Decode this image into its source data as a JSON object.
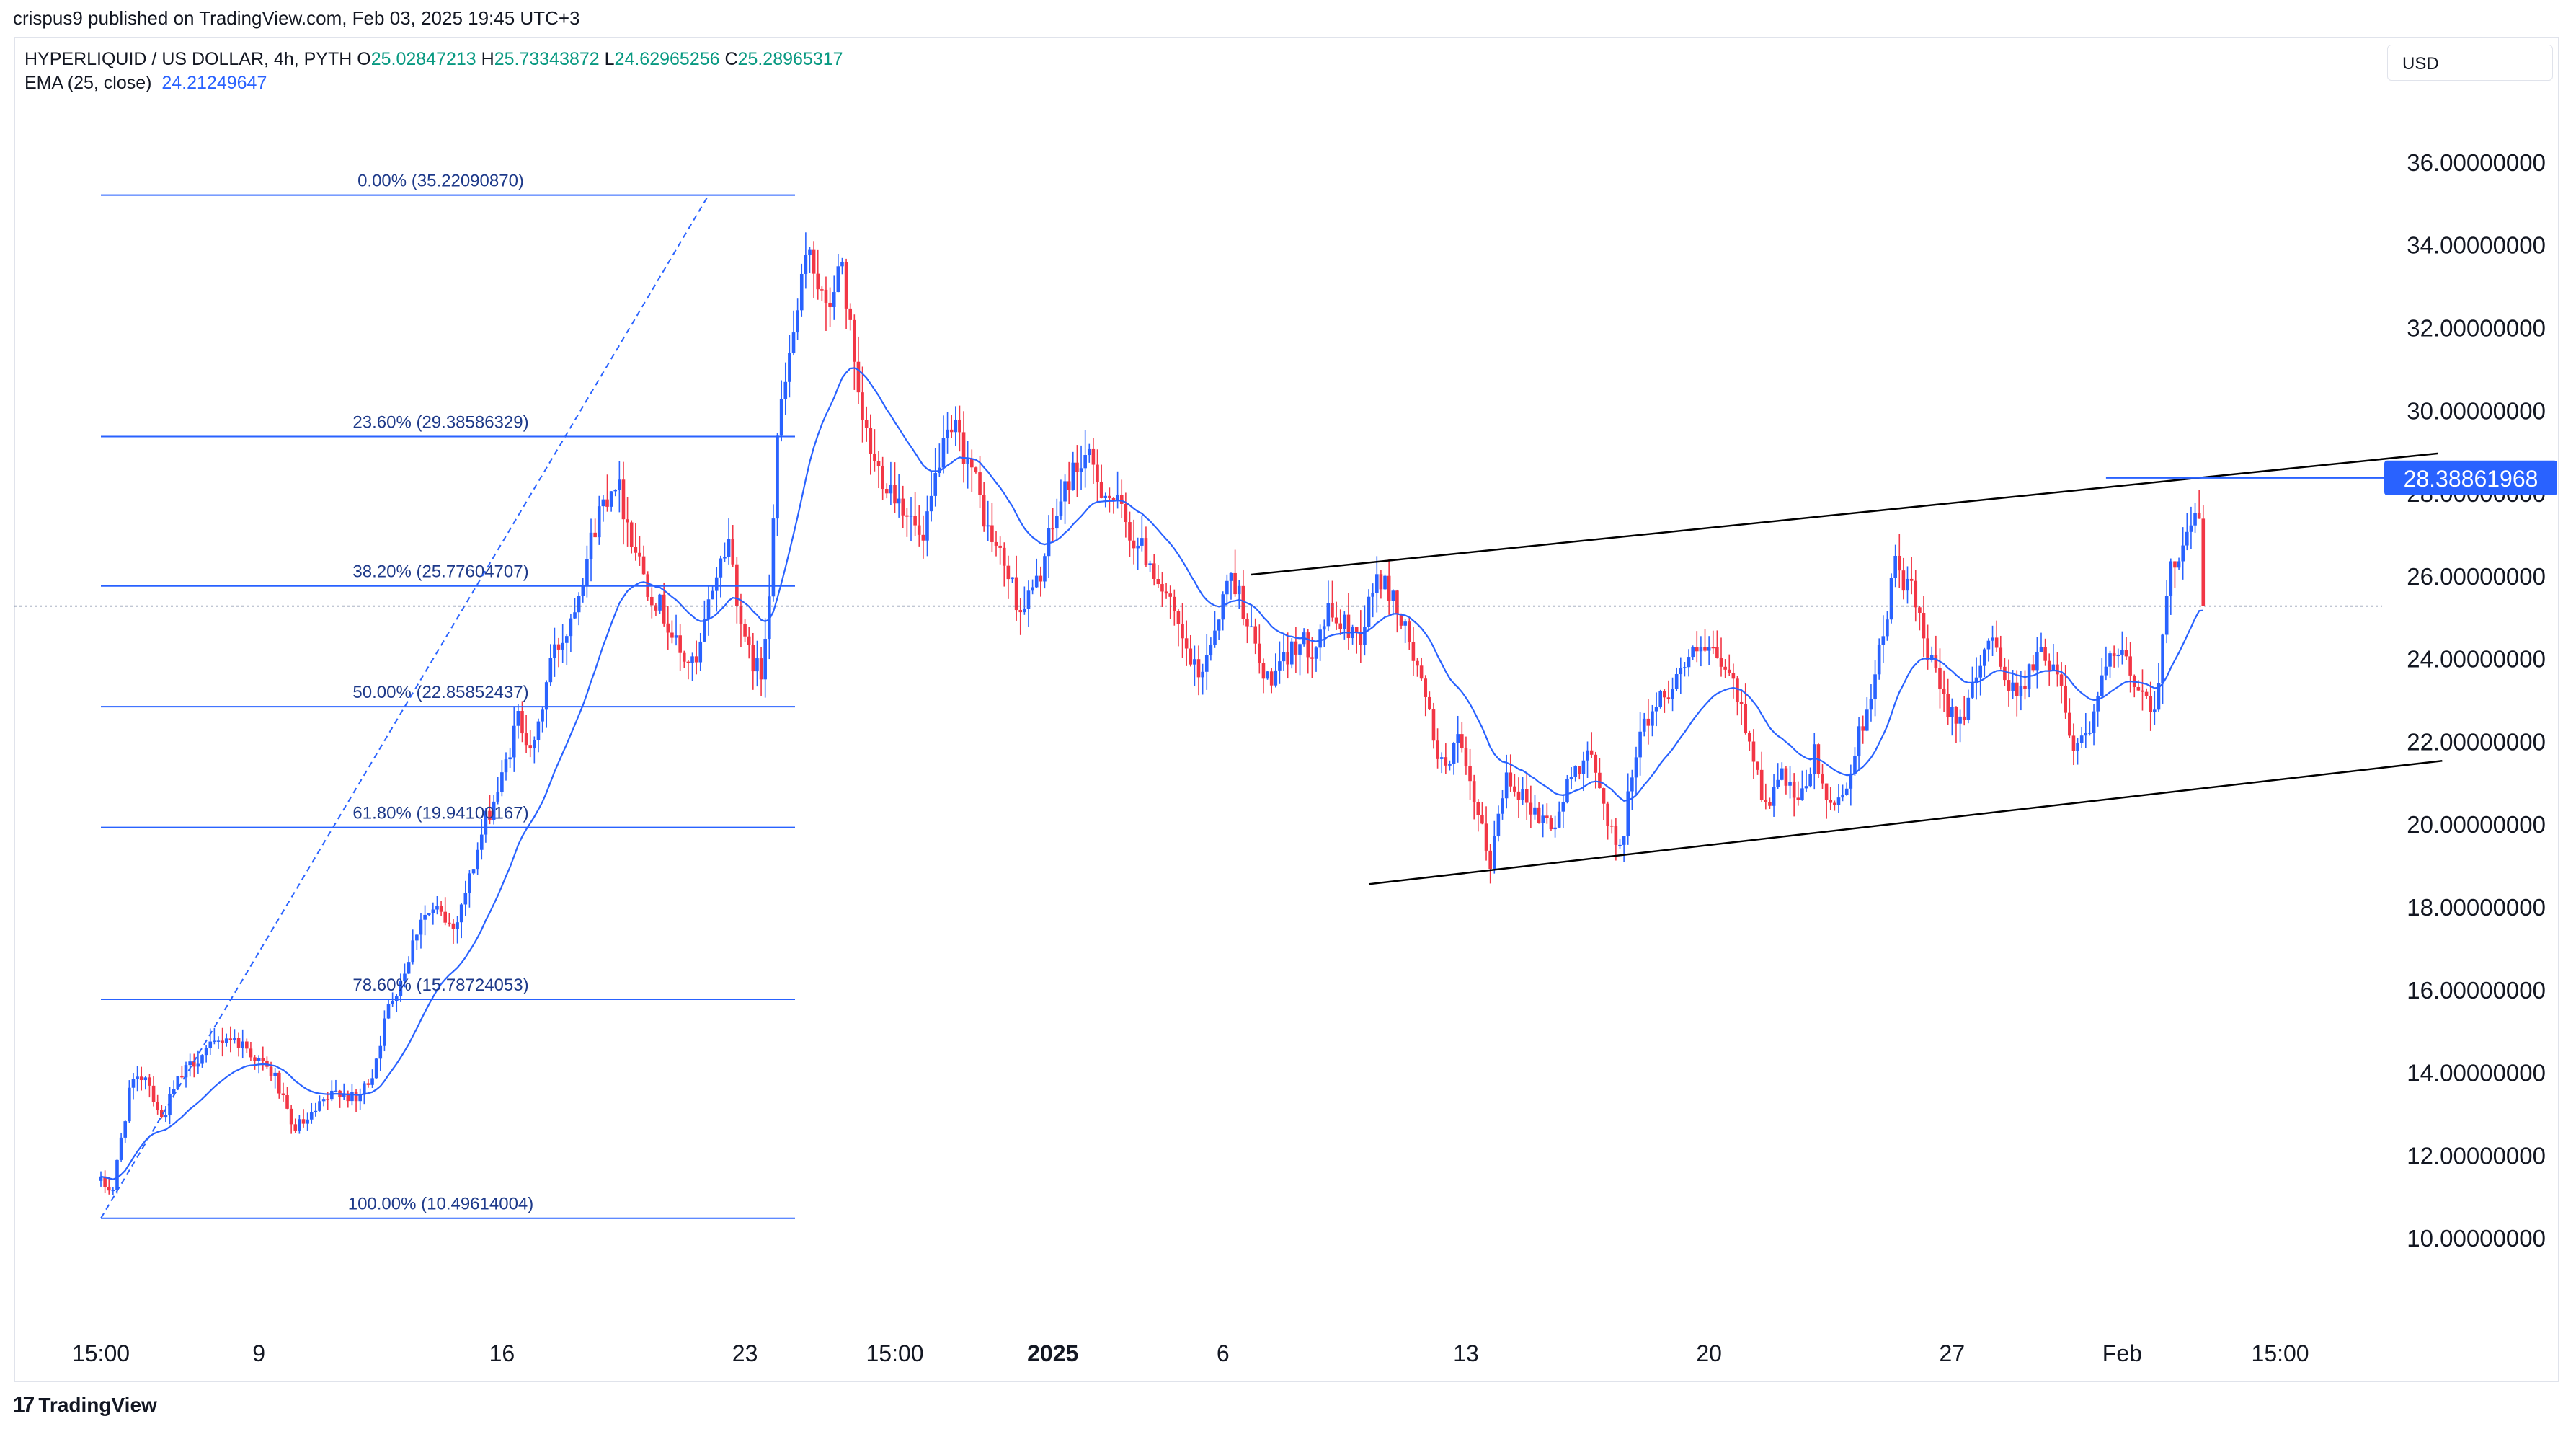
{
  "header": {
    "publisher": "crispus9 published on TradingView.com, Feb 03, 2025 19:45 UTC+3",
    "symbol": "HYPERLIQUID / US DOLLAR, 4h, PYTH",
    "ohlc": {
      "o_label": "O",
      "o": "25.02847213",
      "h_label": "H",
      "h": "25.73343872",
      "l_label": "L",
      "l": "24.62965256",
      "c_label": "C",
      "c": "25.28965317"
    },
    "ema_label": "EMA (25, close)",
    "ema_value": "24.21249647",
    "currency": "USD"
  },
  "footer": {
    "brand": "TradingView",
    "brand_mark": "17"
  },
  "colors": {
    "up": "#2962ff",
    "down": "#f23645",
    "ema": "#2962ff",
    "fib": "#2962ff",
    "fib_text": "#1e3a8a",
    "channel": "#000000",
    "price_line": "#5b6b8c",
    "badge": "#2962ff"
  },
  "chart_data": {
    "type": "candlestick",
    "title": "",
    "ylim": [
      8,
      37
    ],
    "y_ticks": [
      "10.00000000",
      "12.00000000",
      "14.00000000",
      "16.00000000",
      "18.00000000",
      "20.00000000",
      "22.00000000",
      "24.00000000",
      "26.00000000",
      "28.00000000",
      "30.00000000",
      "32.00000000",
      "34.00000000",
      "36.00000000"
    ],
    "y_tick_values": [
      10,
      12,
      14,
      16,
      18,
      20,
      22,
      24,
      26,
      28,
      30,
      32,
      34,
      36
    ],
    "x_ticks": [
      {
        "label": "15:00",
        "bar": 0,
        "bold": false
      },
      {
        "label": "9",
        "bar": 39,
        "bold": false
      },
      {
        "label": "16",
        "bar": 99,
        "bold": false
      },
      {
        "label": "23",
        "bar": 159,
        "bold": false
      },
      {
        "label": "15:00",
        "bar": 196,
        "bold": false
      },
      {
        "label": "2025",
        "bar": 235,
        "bold": true
      },
      {
        "label": "6",
        "bar": 277,
        "bold": false
      },
      {
        "label": "13",
        "bar": 337,
        "bold": false
      },
      {
        "label": "20",
        "bar": 397,
        "bold": false
      },
      {
        "label": "27",
        "bar": 457,
        "bold": false
      },
      {
        "label": "Feb",
        "bar": 499,
        "bold": false
      },
      {
        "label": "15:00",
        "bar": 538,
        "bold": false
      }
    ],
    "bar_count": 520,
    "anchors": [
      [
        0,
        11.4
      ],
      [
        4,
        11.2
      ],
      [
        8,
        13.6
      ],
      [
        12,
        14.0
      ],
      [
        16,
        12.9
      ],
      [
        20,
        13.8
      ],
      [
        24,
        14.3
      ],
      [
        28,
        14.6
      ],
      [
        32,
        14.9
      ],
      [
        36,
        14.7
      ],
      [
        40,
        14.3
      ],
      [
        44,
        13.9
      ],
      [
        48,
        12.7
      ],
      [
        52,
        12.8
      ],
      [
        56,
        13.3
      ],
      [
        60,
        13.6
      ],
      [
        64,
        13.3
      ],
      [
        68,
        14.0
      ],
      [
        72,
        15.6
      ],
      [
        76,
        16.5
      ],
      [
        80,
        17.8
      ],
      [
        84,
        17.9
      ],
      [
        88,
        17.5
      ],
      [
        92,
        18.7
      ],
      [
        96,
        20.1
      ],
      [
        100,
        21.1
      ],
      [
        104,
        22.6
      ],
      [
        108,
        21.8
      ],
      [
        112,
        24.0
      ],
      [
        116,
        24.7
      ],
      [
        120,
        26.1
      ],
      [
        124,
        27.6
      ],
      [
        128,
        28.4
      ],
      [
        132,
        27.0
      ],
      [
        136,
        25.8
      ],
      [
        140,
        25.1
      ],
      [
        144,
        24.1
      ],
      [
        148,
        23.8
      ],
      [
        152,
        25.8
      ],
      [
        156,
        26.9
      ],
      [
        160,
        24.3
      ],
      [
        164,
        23.6
      ],
      [
        166,
        25.8
      ],
      [
        168,
        29.4
      ],
      [
        172,
        31.9
      ],
      [
        176,
        34.0
      ],
      [
        180,
        32.3
      ],
      [
        184,
        33.6
      ],
      [
        188,
        30.1
      ],
      [
        192,
        28.7
      ],
      [
        196,
        28.2
      ],
      [
        200,
        27.6
      ],
      [
        204,
        26.7
      ],
      [
        208,
        28.9
      ],
      [
        212,
        29.5
      ],
      [
        216,
        28.6
      ],
      [
        220,
        27.1
      ],
      [
        224,
        26.3
      ],
      [
        228,
        25.2
      ],
      [
        232,
        25.8
      ],
      [
        236,
        27.2
      ],
      [
        240,
        28.4
      ],
      [
        244,
        28.9
      ],
      [
        248,
        28.2
      ],
      [
        252,
        27.7
      ],
      [
        256,
        26.9
      ],
      [
        260,
        26.4
      ],
      [
        264,
        25.5
      ],
      [
        268,
        24.4
      ],
      [
        272,
        23.5
      ],
      [
        276,
        24.8
      ],
      [
        280,
        26.1
      ],
      [
        284,
        25.0
      ],
      [
        288,
        23.5
      ],
      [
        292,
        23.7
      ],
      [
        296,
        24.4
      ],
      [
        300,
        24.3
      ],
      [
        304,
        25.1
      ],
      [
        308,
        24.8
      ],
      [
        312,
        24.6
      ],
      [
        316,
        26.0
      ],
      [
        320,
        25.5
      ],
      [
        324,
        24.4
      ],
      [
        328,
        23.0
      ],
      [
        332,
        21.4
      ],
      [
        336,
        22.0
      ],
      [
        340,
        20.5
      ],
      [
        344,
        19.1
      ],
      [
        348,
        21.3
      ],
      [
        352,
        20.7
      ],
      [
        356,
        20.2
      ],
      [
        360,
        20.0
      ],
      [
        364,
        21.2
      ],
      [
        368,
        21.8
      ],
      [
        372,
        20.5
      ],
      [
        376,
        19.3
      ],
      [
        380,
        21.9
      ],
      [
        384,
        22.8
      ],
      [
        388,
        23.3
      ],
      [
        392,
        23.9
      ],
      [
        396,
        24.2
      ],
      [
        400,
        24.0
      ],
      [
        404,
        23.4
      ],
      [
        408,
        22.1
      ],
      [
        412,
        20.4
      ],
      [
        416,
        21.2
      ],
      [
        420,
        20.4
      ],
      [
        424,
        21.7
      ],
      [
        428,
        20.3
      ],
      [
        432,
        21.0
      ],
      [
        436,
        22.5
      ],
      [
        440,
        24.1
      ],
      [
        444,
        26.3
      ],
      [
        448,
        25.6
      ],
      [
        452,
        24.1
      ],
      [
        456,
        23.0
      ],
      [
        460,
        22.6
      ],
      [
        464,
        23.4
      ],
      [
        468,
        24.8
      ],
      [
        472,
        23.2
      ],
      [
        476,
        23.5
      ],
      [
        480,
        24.2
      ],
      [
        484,
        23.8
      ],
      [
        488,
        21.9
      ],
      [
        492,
        22.4
      ],
      [
        496,
        23.8
      ],
      [
        500,
        24.1
      ],
      [
        504,
        23.3
      ],
      [
        508,
        22.9
      ],
      [
        512,
        26.1
      ],
      [
        516,
        27.2
      ],
      [
        520,
        27.5
      ],
      [
        524,
        27.9
      ],
      [
        528,
        27.1
      ],
      [
        532,
        26.5
      ],
      [
        536,
        22.6
      ],
      [
        540,
        22.1
      ],
      [
        544,
        22.3
      ],
      [
        548,
        24.0
      ],
      [
        552,
        25.3
      ]
    ],
    "ema_period": 25,
    "last_close": 25.28965317,
    "fib_levels": [
      {
        "label": "0.00% (35.22090870)",
        "value": 35.2209087
      },
      {
        "label": "23.60% (29.38586329)",
        "value": 29.38586329
      },
      {
        "label": "38.20% (25.77604707)",
        "value": 25.77604707
      },
      {
        "label": "50.00% (22.85852437)",
        "value": 22.85852437
      },
      {
        "label": "61.80% (19.94100167)",
        "value": 19.94100167
      },
      {
        "label": "78.60% (15.78724053)",
        "value": 15.78724053
      },
      {
        "label": "100.00% (10.49614004)",
        "value": 10.49614004
      }
    ],
    "fib_range": {
      "bar_start": 0,
      "bar_end": 150
    },
    "fib_diagonal": [
      [
        0,
        10.49614004
      ],
      [
        150,
        35.2209087
      ]
    ],
    "channel_upper": [
      [
        284,
        26.05
      ],
      [
        577,
        28.98
      ]
    ],
    "channel_lower": [
      [
        313,
        18.57
      ],
      [
        578,
        21.55
      ]
    ],
    "resistance_line": {
      "bar_start": 495,
      "bar_end": 600,
      "value": 28.38861968,
      "label": "28.38861968"
    }
  }
}
